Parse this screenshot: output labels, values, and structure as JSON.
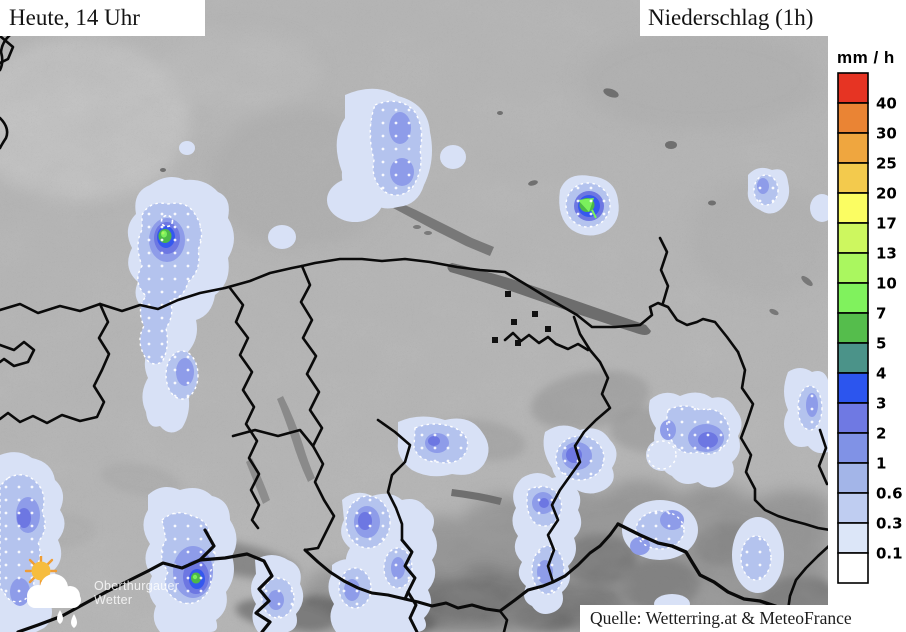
{
  "header": {
    "left_label": "Heute, 14 Uhr",
    "right_label": "Niederschlag (1h)"
  },
  "legend": {
    "title": "mm / h",
    "labels": [
      "40",
      "30",
      "25",
      "20",
      "17",
      "13",
      "10",
      "7",
      "5",
      "4",
      "3",
      "2",
      "1",
      "0.6",
      "0.3",
      "0.1"
    ],
    "colors": [
      "#e63423",
      "#ea8434",
      "#efa63f",
      "#f3ca4d",
      "#fbfd62",
      "#cdf75f",
      "#aaf75f",
      "#80f25d",
      "#55bd4c",
      "#4b9389",
      "#2c55ee",
      "#6f79e3",
      "#8092e6",
      "#a3b5e8",
      "#bfcdf1",
      "#dce6f8",
      "#ffffff"
    ]
  },
  "logo": {
    "line1": "Oberthurgauer",
    "line2": "Wetter"
  },
  "source_label": "Quelle: Wetterring.at & MeteoFrance",
  "map": {
    "base_color": "#b6b6b6",
    "lake_color": "#6d6d6d",
    "border_color": "#0a0a0a",
    "precip_levels": [
      {
        "range_mm_h": "0.1-0.3",
        "color": "#d8e1f6"
      },
      {
        "range_mm_h": "0.3-1",
        "color": "#b4c3ee"
      },
      {
        "range_mm_h": "1-2",
        "color": "#8e9ce9"
      },
      {
        "range_mm_h": "2-3",
        "color": "#6d77e2"
      },
      {
        "range_mm_h": "3-4",
        "color": "#3558ee"
      },
      {
        "range_mm_h": "5-7",
        "color": "#4db848"
      },
      {
        "range_mm_h": "7-10",
        "color": "#7bf05c"
      },
      {
        "range_mm_h": "10-13",
        "color": "#a8f75f"
      }
    ]
  }
}
